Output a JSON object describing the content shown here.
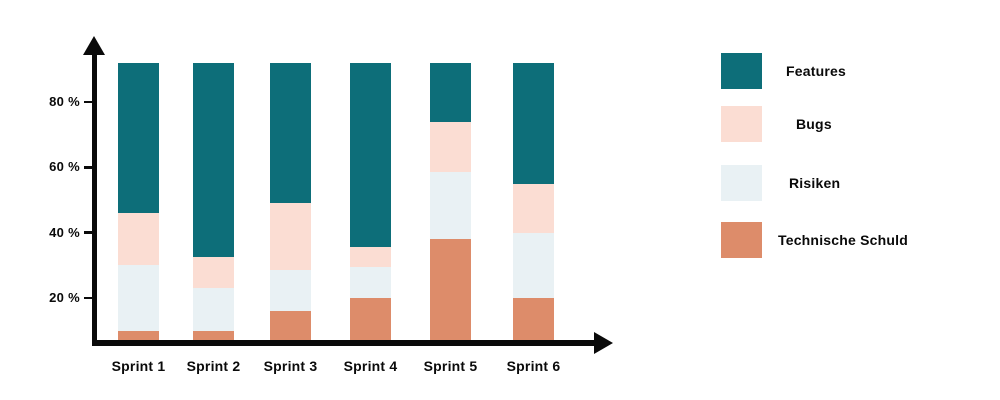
{
  "chart_data": {
    "type": "bar",
    "stacked": true,
    "categories": [
      "Sprint 1",
      "Sprint 2",
      "Sprint 3",
      "Sprint 4",
      "Sprint 5",
      "Sprint 6"
    ],
    "series": [
      {
        "name": "Technische Schuld",
        "color": "#dd8c6a",
        "values": [
          10,
          10,
          16,
          20,
          38,
          20
        ]
      },
      {
        "name": "Risiken",
        "color": "#e9f1f4",
        "values": [
          20,
          13,
          12.5,
          9.5,
          20.5,
          20
        ]
      },
      {
        "name": "Bugs",
        "color": "#fbddd3",
        "values": [
          16,
          9.5,
          20.5,
          6,
          15.5,
          15
        ]
      },
      {
        "name": "Features",
        "color": "#0d6e79",
        "values": [
          46,
          59.5,
          43,
          56.5,
          18,
          37
        ]
      }
    ],
    "y_ticks": [
      {
        "label": "20 %",
        "value": 20
      },
      {
        "label": "40 %",
        "value": 40
      },
      {
        "label": "60 %",
        "value": 60
      },
      {
        "label": "80 %",
        "value": 80
      }
    ],
    "y_axis": {
      "min": 0,
      "max_drawn": 92,
      "unit": "%"
    },
    "grid": false,
    "axis_color": "#0a0a0a",
    "legend": {
      "position": "right",
      "items": [
        {
          "label": "Features",
          "color": "#0d6e79"
        },
        {
          "label": "Bugs",
          "color": "#fbddd3"
        },
        {
          "label": "Risiken",
          "color": "#e9f1f4"
        },
        {
          "label": "Technische Schuld",
          "color": "#dd8c6a"
        }
      ]
    }
  }
}
